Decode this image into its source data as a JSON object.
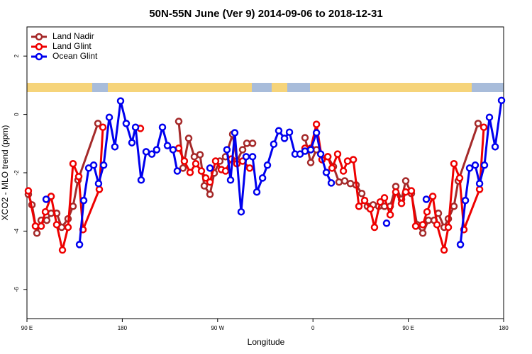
{
  "chart_data": {
    "type": "line",
    "title": "50N-55N June (Ver 9)   2014-09-06 to 2018-12-31",
    "x_label": "Longitude",
    "y_label": "XCO2 - MLO trend (ppm)",
    "xlim": [
      90,
      540
    ],
    "ylim": [
      -7,
      3
    ],
    "xticks": [
      {
        "value": 90,
        "label": "90 E"
      },
      {
        "value": 180,
        "label": "180"
      },
      {
        "value": 270,
        "label": "90 W"
      },
      {
        "value": 360,
        "label": "0"
      },
      {
        "value": 450,
        "label": "90 E"
      },
      {
        "value": 540,
        "label": "180"
      }
    ],
    "yticks": [
      2,
      0,
      -2,
      -4,
      -6
    ],
    "legend": "top-left",
    "series": [
      {
        "name": "Land Nadir",
        "color": "#a52a2a",
        "x": [
          91.3,
          94.7,
          99.4,
          103.4,
          108.7,
          112.8,
          118.1,
          122.8,
          128.8,
          133.5,
          138.2,
          157,
          null,
          233.3,
          237.3,
          242.7,
          248,
          253.4,
          257.4,
          262.8,
          266.8,
          272.1,
          277.5,
          284.2,
          288.2,
          293.6,
          297.6,
          303,
          null,
          352.5,
          357.9,
          363.3,
          368.6,
          374,
          379.3,
          384.6,
          390,
          395.4,
          400.7,
          406.1,
          411.4,
          416.8,
          422.1,
          427.5,
          432.9,
          438.2,
          443.6,
          447.6,
          452.9,
          458.3,
          463.7,
          469,
          474.4,
          478.4,
          483.8,
          487.8,
          493.1,
          497.2,
          515.9
        ],
        "values": [
          -2.74,
          -3.1,
          -4.07,
          -3.63,
          -3.63,
          -3.39,
          -3.39,
          -3.87,
          -3.58,
          -3.15,
          -2.25,
          -0.31,
          null,
          -0.24,
          -1.84,
          -0.82,
          -1.45,
          -1.38,
          -2.45,
          -2.74,
          -2.01,
          -1.6,
          -1.45,
          -0.68,
          -1.6,
          -1.21,
          -0.99,
          -0.99,
          null,
          -0.8,
          -1.65,
          -1.21,
          -1.55,
          -1.45,
          -1.79,
          -2.32,
          -2.28,
          -2.37,
          -2.42,
          -2.71,
          -3.15,
          -3.1,
          -3.15,
          -3.15,
          -3.15,
          -2.47,
          -2.91,
          -2.28,
          -2.71,
          -3.78,
          -4.07,
          -3.63,
          -3.63,
          -3.39,
          -3.87,
          -3.58,
          -3.15,
          -2.28,
          -0.31
        ]
      },
      {
        "name": "Land Glint",
        "color": "#ee0000",
        "x": [
          91.3,
          98,
          103.4,
          107.4,
          112.8,
          118.1,
          123.5,
          128.8,
          133.5,
          138.9,
          142.9,
          158.3,
          161.7,
          null,
          197.1,
          null,
          233.3,
          238.6,
          244,
          249.4,
          254.7,
          258.8,
          262.8,
          268.1,
          273.5,
          277.5,
          282.9,
          288.2,
          293.6,
          300.3,
          null,
          352.5,
          357.9,
          363.3,
          368.6,
          374,
          378,
          383.3,
          388.7,
          392.7,
          398.1,
          403.4,
          408.8,
          414.1,
          418.1,
          423.5,
          427.5,
          432.9,
          438.2,
          443.6,
          447.6,
          452.9,
          457,
          463.7,
          467.7,
          473.1,
          477.1,
          483.8,
          487.8,
          493.1,
          498.5,
          502.5,
          517.3,
          521.3
        ],
        "values": [
          -2.62,
          -3.83,
          -3.83,
          -3.34,
          -2.81,
          -3.78,
          -4.65,
          -3.87,
          -1.69,
          -2.13,
          -3.95,
          -2.57,
          -0.44,
          null,
          -0.48,
          null,
          -1.16,
          -1.6,
          -1.99,
          -1.69,
          -1.94,
          -2.18,
          -2.32,
          -1.6,
          -1.89,
          -1.94,
          -1.53,
          -1.69,
          -1.6,
          -1.84,
          null,
          -1.16,
          -1.16,
          -0.34,
          -1.55,
          -1.45,
          -1.84,
          -1.36,
          -1.94,
          -1.6,
          -1.55,
          -3.15,
          -2.95,
          -3.24,
          -3.87,
          -3.0,
          -2.86,
          -3.44,
          -2.66,
          -3.05,
          -2.66,
          -2.62,
          -3.83,
          -3.78,
          -3.34,
          -2.81,
          -3.78,
          -4.65,
          -3.87,
          -1.69,
          -2.18,
          -3.95,
          -2.57,
          -0.44
        ]
      },
      {
        "name": "Ocean Glint",
        "color": "#0000ee",
        "x": [
          108.1,
          null,
          139.6,
          143.6,
          148.3,
          153,
          157.6,
          162.4,
          167.7,
          173,
          178.4,
          183.7,
          189.1,
          192.5,
          197.8,
          202.5,
          207.9,
          212.5,
          217.9,
          222.6,
          227.9,
          231.9,
          null,
          262.8,
          null,
          278.8,
          282.2,
          286.2,
          292.2,
          296.9,
          303,
          307,
          312.4,
          317,
          323,
          327.7,
          333.1,
          337.8,
          343.1,
          347.8,
          352.5,
          357.9,
          363.3,
          367.3,
          372.6,
          377.3,
          null,
          429.5,
          null,
          467,
          null,
          499.2,
          503.9,
          507.9,
          513.2,
          517.3,
          521.9,
          526.6,
          532,
          538
        ],
        "values": [
          -2.91,
          null,
          -4.46,
          -2.95,
          -1.84,
          -1.74,
          -2.37,
          -1.74,
          -0.1,
          -1.11,
          0.46,
          -0.31,
          -0.97,
          -0.44,
          -2.25,
          -1.28,
          -1.36,
          -1.21,
          -0.44,
          -1.07,
          -1.21,
          -1.94,
          null,
          -1.84,
          null,
          -1.21,
          -2.25,
          -0.63,
          -3.34,
          -1.45,
          -1.45,
          -2.66,
          -2.18,
          -1.74,
          -1.02,
          -0.56,
          -0.82,
          -0.61,
          -1.36,
          -1.36,
          -1.26,
          -1.21,
          -0.63,
          -1.36,
          -1.99,
          -2.35,
          null,
          -3.73,
          null,
          -2.91,
          null,
          -4.46,
          -2.95,
          -1.84,
          -1.74,
          -2.37,
          -1.74,
          -0.1,
          -1.11,
          0.48
        ]
      }
    ]
  }
}
